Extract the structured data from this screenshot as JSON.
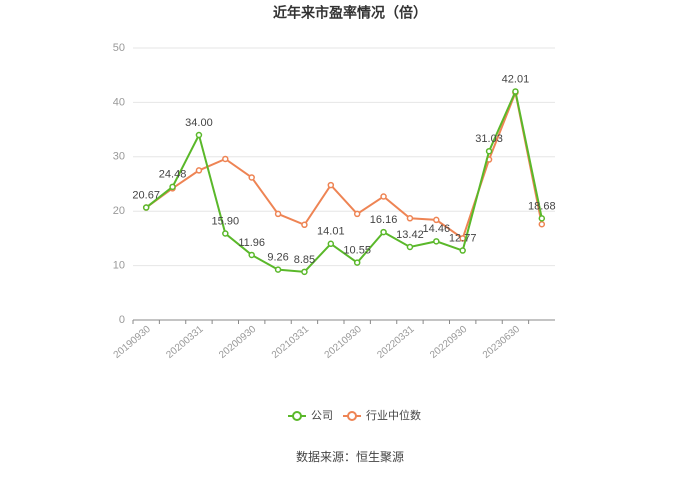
{
  "chart_data": {
    "type": "line",
    "title": "近年来市盈率情况（倍）",
    "categories": [
      "20190930",
      null,
      "20200331",
      null,
      "20200930",
      null,
      "20210331",
      null,
      "20210930",
      null,
      "20220331",
      null,
      "20220930",
      null,
      "20230630",
      null
    ],
    "series": [
      {
        "name": "公司",
        "color": "#5ab82a",
        "values": [
          20.67,
          24.48,
          34.0,
          15.9,
          11.96,
          9.26,
          8.85,
          14.01,
          10.55,
          16.16,
          13.42,
          14.46,
          12.77,
          31.03,
          42.01,
          18.68
        ],
        "value_labels": [
          "20.67",
          "24.48",
          "34.00",
          "15.90",
          "11.96",
          "9.26",
          "8.85",
          "14.01",
          "10.55",
          "16.16",
          "13.42",
          "14.46",
          "12.77",
          "31.03",
          "42.01",
          "18.68"
        ]
      },
      {
        "name": "行业中位数",
        "color": "#ee8454",
        "values": [
          20.67,
          24.2,
          27.5,
          29.6,
          26.2,
          19.5,
          17.5,
          24.8,
          19.5,
          22.7,
          18.7,
          18.4,
          15.0,
          29.5,
          41.8,
          17.6
        ]
      }
    ],
    "ylim": [
      0,
      50
    ],
    "yticks": [
      0,
      10,
      20,
      30,
      40,
      50
    ],
    "grid": true,
    "legend": "bottom",
    "source": "数据来源：恒生聚源"
  }
}
